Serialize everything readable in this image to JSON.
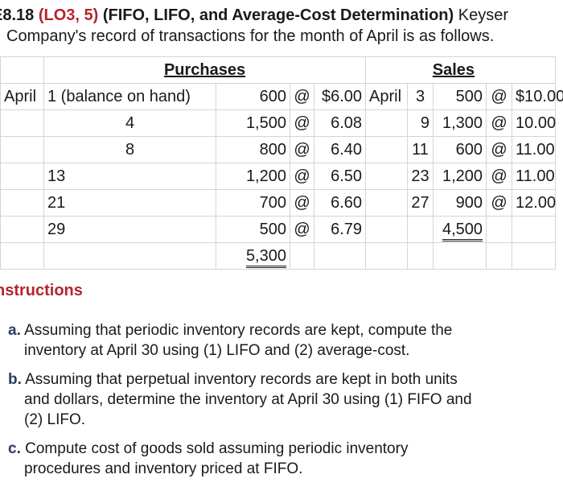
{
  "header": {
    "exercise": "E8.18",
    "lo": "(LO3, 5)",
    "title": "(FIFO, LIFO, and Average-Cost Determination)",
    "company_first": "Keyser",
    "line2": "Company's record of transactions for the month of April is as follows."
  },
  "table": {
    "purchases_header": "Purchases",
    "sales_header": "Sales",
    "month": "April",
    "at": "@",
    "purchases": [
      {
        "day": "1 (balance on hand)",
        "units": "600",
        "price": "$6.00"
      },
      {
        "day": "4",
        "units": "1,500",
        "price": "6.08"
      },
      {
        "day": "8",
        "units": "800",
        "price": "6.40"
      },
      {
        "day": "13",
        "units": "1,200",
        "price": "6.50"
      },
      {
        "day": "21",
        "units": "700",
        "price": "6.60"
      },
      {
        "day": "29",
        "units": "500",
        "price": "6.79"
      }
    ],
    "purchases_total": "5,300",
    "sales": [
      {
        "day": "3",
        "units": "500",
        "price": "$10.00"
      },
      {
        "day": "9",
        "units": "1,300",
        "price": "10.00"
      },
      {
        "day": "11",
        "units": "600",
        "price": "11.00"
      },
      {
        "day": "23",
        "units": "1,200",
        "price": "11.00"
      },
      {
        "day": "27",
        "units": "900",
        "price": "12.00"
      }
    ],
    "sales_total": "4,500"
  },
  "instructions": {
    "heading": "nstructions",
    "items": [
      {
        "label": "a.",
        "line1": "Assuming that periodic inventory records are kept, compute the",
        "line2": "inventory at April 30 using (1) LIFO and (2) average-cost."
      },
      {
        "label": "b.",
        "line1": "Assuming that perpetual inventory records are kept in both units",
        "line2": "and dollars, determine the inventory at April 30 using (1) FIFO and",
        "line3": "(2) LIFO."
      },
      {
        "label": "c.",
        "line1": "Compute cost of goods sold assuming periodic inventory",
        "line2": "procedures and inventory priced at FIFO."
      }
    ]
  }
}
